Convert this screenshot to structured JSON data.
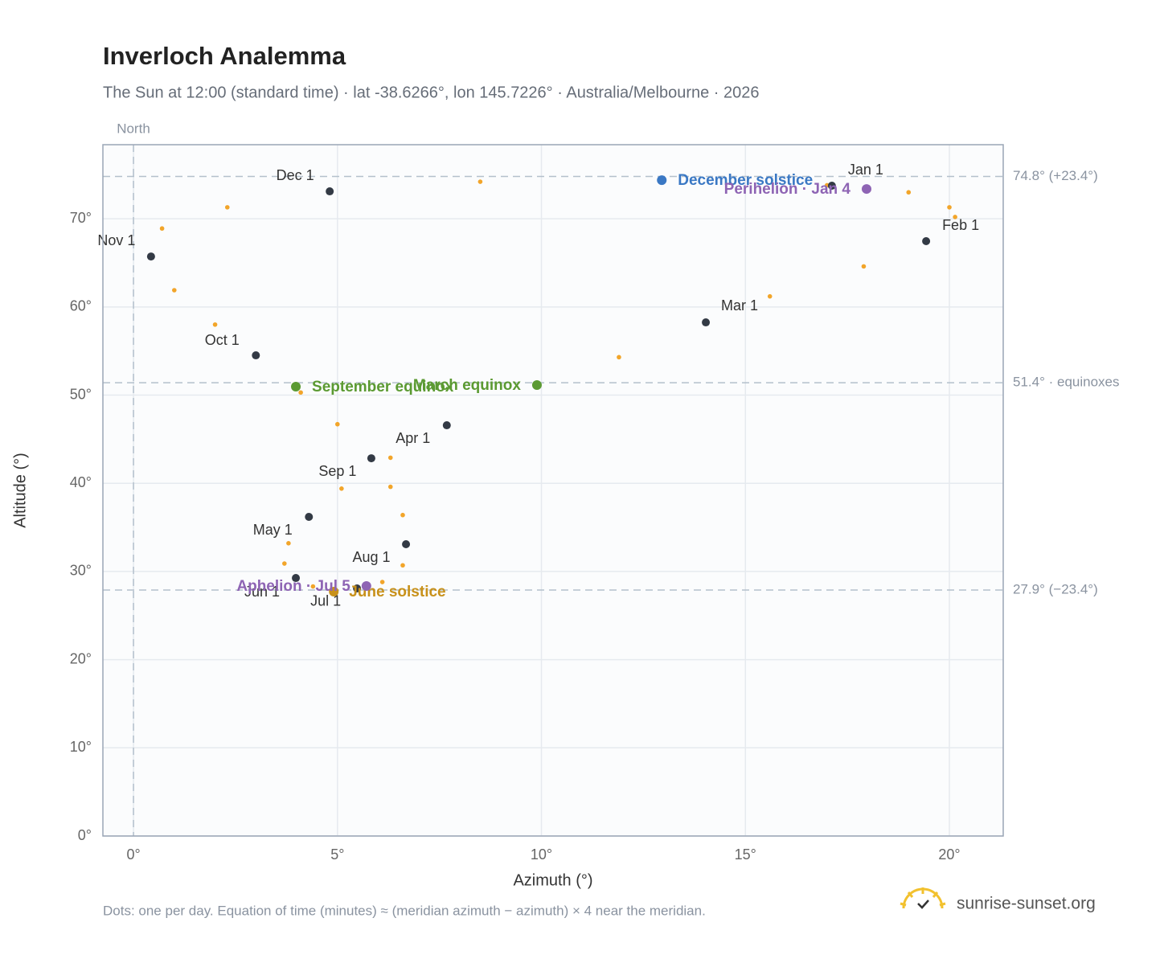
{
  "chart_data": {
    "type": "scatter",
    "title": "Inverloch Analemma",
    "subtitle": "The Sun at 12:00 (standard time) · lat -38.6266°, lon 145.7226° · Australia/Melbourne · 2026",
    "x_label": "Azimuth (°)",
    "y_label": "Altitude (°)",
    "north_label": "North",
    "north_x": 0,
    "footnote": "Dots: one per day. Equation of time (minutes) ≈ (meridian azimuth − azimuth) × 4 near the meridian.",
    "brand": "sunrise-sunset.org",
    "xlim": [
      -0.75,
      21.32
    ],
    "ylim": [
      0,
      78.4
    ],
    "xticks": [
      {
        "value": 0,
        "label": "0°"
      },
      {
        "value": 5,
        "label": "5°"
      },
      {
        "value": 10,
        "label": "10°"
      },
      {
        "value": 15,
        "label": "15°"
      },
      {
        "value": 20,
        "label": "20°"
      }
    ],
    "yticks": [
      {
        "value": 0,
        "label": "0°"
      },
      {
        "value": 10,
        "label": "10°"
      },
      {
        "value": 20,
        "label": "20°"
      },
      {
        "value": 30,
        "label": "30°"
      },
      {
        "value": 40,
        "label": "40°"
      },
      {
        "value": 50,
        "label": "50°"
      },
      {
        "value": 60,
        "label": "60°"
      },
      {
        "value": 70,
        "label": "70°"
      }
    ],
    "grid": true,
    "reference_lines": [
      {
        "value": 74.8,
        "label": "74.8° (+23.4°)"
      },
      {
        "value": 51.4,
        "label": "51.4° · equinoxes"
      },
      {
        "value": 27.9,
        "label": "27.9° (−23.4°)"
      }
    ],
    "daily_points": {
      "color": "#f2a52a",
      "x": [
        17.12,
        19.0,
        20.0,
        20.14,
        19.43,
        17.9,
        15.6,
        14.03,
        11.9,
        9.89,
        7.68,
        6.3,
        5.1,
        4.3,
        3.8,
        3.7,
        3.98,
        4.4,
        4.91,
        5.48,
        6.1,
        6.6,
        6.68,
        6.6,
        6.3,
        5.83,
        5.0,
        4.1,
        3.0,
        2.0,
        1.0,
        0.43,
        0.7,
        2.3,
        4.81,
        8.5,
        12.95,
        17.0
      ],
      "y": [
        73.75,
        73.0,
        71.3,
        70.2,
        67.46,
        64.6,
        61.2,
        58.25,
        54.3,
        51.14,
        46.58,
        42.9,
        39.4,
        36.19,
        33.2,
        30.9,
        29.26,
        28.3,
        27.71,
        28.08,
        28.8,
        30.7,
        33.09,
        36.4,
        39.6,
        42.84,
        46.7,
        50.3,
        54.51,
        58.0,
        61.9,
        65.72,
        68.9,
        71.3,
        73.11,
        74.2,
        74.38,
        73.8
      ]
    },
    "month_points": {
      "color": "#333a45",
      "labels": [
        "Jan 1",
        "Feb 1",
        "Mar 1",
        "Apr 1",
        "May 1",
        "Jun 1",
        "Jul 1",
        "Aug 1",
        "Sep 1",
        "Oct 1",
        "Nov 1",
        "Dec 1"
      ],
      "x": [
        17.12,
        19.43,
        14.03,
        7.68,
        4.3,
        3.98,
        5.48,
        6.68,
        5.83,
        3.0,
        0.43,
        4.81
      ],
      "y": [
        73.75,
        67.46,
        58.25,
        46.58,
        36.19,
        29.26,
        28.08,
        33.09,
        42.84,
        54.51,
        65.72,
        73.11
      ]
    },
    "events": [
      {
        "label": "December solstice",
        "color": "#3a78c4",
        "x": 12.95,
        "y": 74.38
      },
      {
        "label": "Perihelion · Jan 4",
        "color": "#8e64b4",
        "x": 17.97,
        "y": 73.38
      },
      {
        "label": "March equinox",
        "color": "#5b9a32",
        "x": 9.89,
        "y": 51.14
      },
      {
        "label": "September equinox",
        "color": "#5b9a32",
        "x": 3.98,
        "y": 50.96
      },
      {
        "label": "June solstice",
        "color": "#c8911a",
        "x": 4.91,
        "y": 27.71
      },
      {
        "label": "Aphelion · Jul 5",
        "color": "#8e64b4",
        "x": 5.71,
        "y": 28.35
      }
    ]
  }
}
